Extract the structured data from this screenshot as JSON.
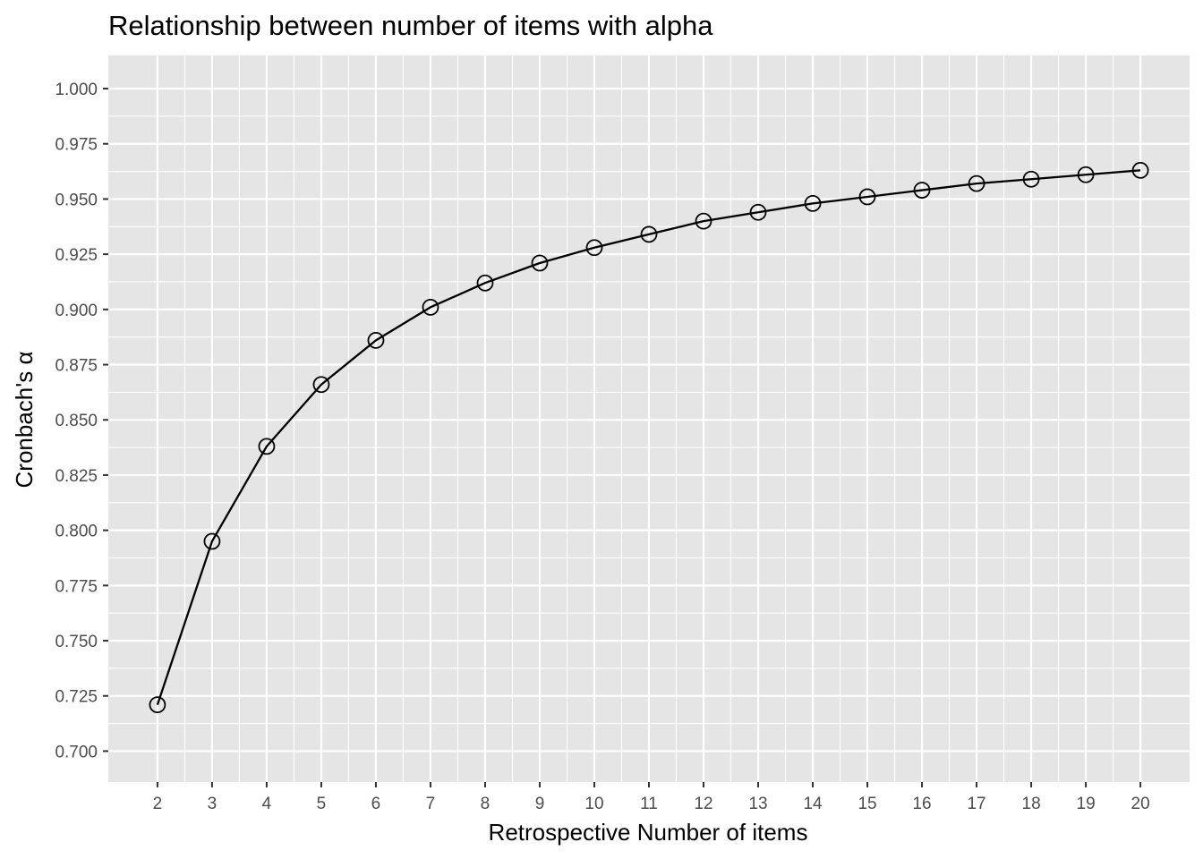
{
  "chart_data": {
    "type": "line",
    "title": "Relationship between number of items with alpha",
    "xlabel": "Retrospective Number of items",
    "ylabel": "Cronbach's α",
    "x": [
      2,
      3,
      4,
      5,
      6,
      7,
      8,
      9,
      10,
      11,
      12,
      13,
      14,
      15,
      16,
      17,
      18,
      19,
      20
    ],
    "series": [
      {
        "values": [
          0.721,
          0.795,
          0.838,
          0.866,
          0.886,
          0.901,
          0.912,
          0.921,
          0.928,
          0.934,
          0.94,
          0.944,
          0.948,
          0.951,
          0.954,
          0.957,
          0.959,
          0.961,
          0.963
        ]
      }
    ],
    "xlim": [
      1.1,
      20.9
    ],
    "ylim": [
      0.686,
      1.015
    ],
    "xticks": [
      2,
      3,
      4,
      5,
      6,
      7,
      8,
      9,
      10,
      11,
      12,
      13,
      14,
      15,
      16,
      17,
      18,
      19,
      20
    ],
    "yticks": [
      "0.700",
      "0.725",
      "0.750",
      "0.775",
      "0.800",
      "0.825",
      "0.850",
      "0.875",
      "0.900",
      "0.925",
      "0.950",
      "0.975",
      "1.000"
    ],
    "grid": true,
    "legend": "none",
    "colors": {
      "panel_background": "#e5e5e5",
      "grid": "#ffffff",
      "line": "#000000",
      "marker_fill": "none",
      "axis_text": "#4d4d4d"
    }
  }
}
